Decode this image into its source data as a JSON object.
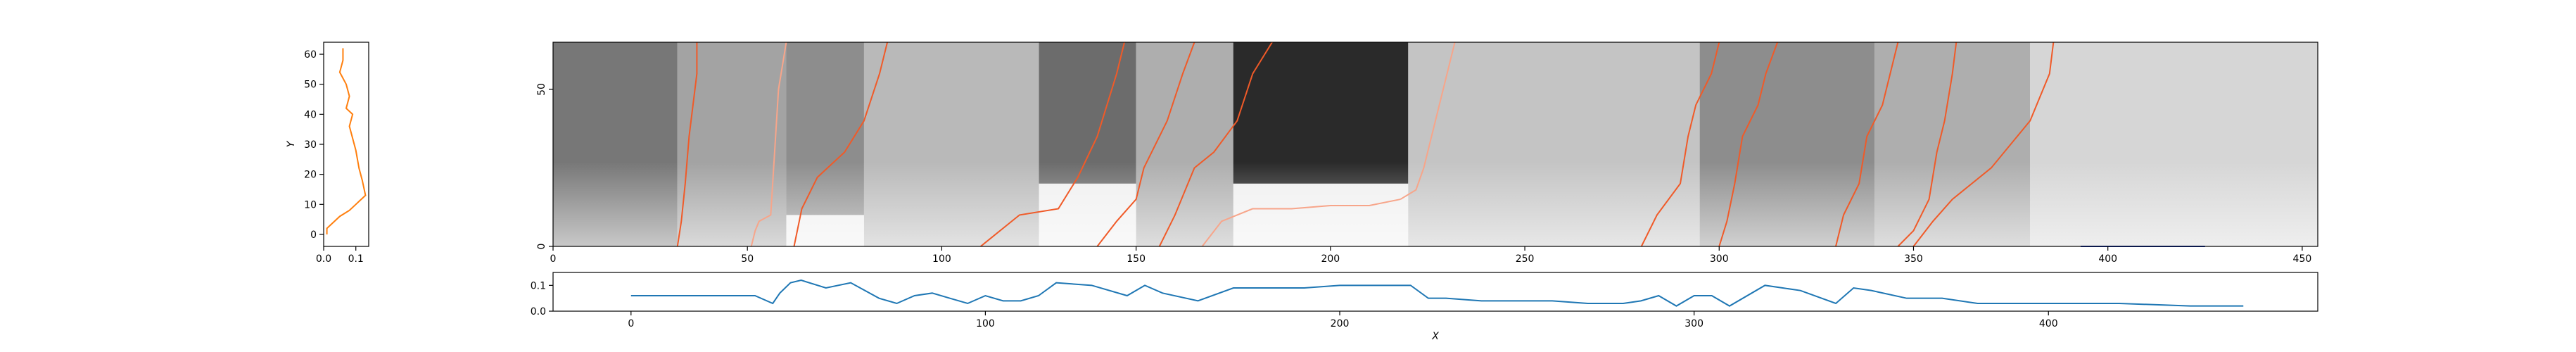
{
  "chart_data": [
    {
      "panel": "left-profile",
      "type": "line",
      "xlabel": "",
      "ylabel": "Y",
      "xlim": [
        0.0,
        0.14
      ],
      "ylim": [
        -4,
        64
      ],
      "x_ticks": [
        "0.0",
        "0.1"
      ],
      "y_ticks": [
        "0",
        "10",
        "20",
        "30",
        "40",
        "50",
        "60"
      ],
      "color": "#ff7f0e",
      "series": [
        {
          "x": [
            0.06,
            0.06,
            0.05,
            0.07,
            0.08,
            0.07,
            0.09,
            0.08,
            0.1,
            0.11,
            0.12,
            0.13,
            0.1,
            0.08,
            0.05,
            0.03,
            0.02,
            0.01,
            0.01
          ],
          "y": [
            62,
            58,
            54,
            50,
            46,
            42,
            40,
            36,
            28,
            22,
            18,
            13,
            10,
            8,
            6,
            4,
            3,
            2,
            0
          ]
        }
      ]
    },
    {
      "panel": "heatmap",
      "type": "heatmap",
      "xlim": [
        0,
        454
      ],
      "ylim": [
        0,
        65
      ],
      "x_ticks": [
        "0",
        "50",
        "100",
        "150",
        "200",
        "250",
        "300",
        "350",
        "400",
        "450"
      ],
      "y_ticks": [
        "0",
        "50"
      ],
      "colormap": "grayscale",
      "path_color": "#f05a28",
      "path_color_light": "#f7a58a",
      "blocks": [
        {
          "x0": 0,
          "x1": 32,
          "y0": 0,
          "y1": 65,
          "shade": 0.55
        },
        {
          "x0": 32,
          "x1": 60,
          "y0": 0,
          "y1": 65,
          "shade": 0.35
        },
        {
          "x0": 60,
          "x1": 80,
          "y0": 10,
          "y1": 65,
          "shade": 0.45
        },
        {
          "x0": 80,
          "x1": 125,
          "y0": 0,
          "y1": 65,
          "shade": 0.25
        },
        {
          "x0": 125,
          "x1": 150,
          "y0": 20,
          "y1": 65,
          "shade": 0.6
        },
        {
          "x0": 150,
          "x1": 175,
          "y0": 0,
          "y1": 65,
          "shade": 0.3
        },
        {
          "x0": 175,
          "x1": 220,
          "y0": 20,
          "y1": 65,
          "shade": 0.9
        },
        {
          "x0": 220,
          "x1": 295,
          "y0": 0,
          "y1": 65,
          "shade": 0.2
        },
        {
          "x0": 295,
          "x1": 340,
          "y0": 0,
          "y1": 65,
          "shade": 0.45
        },
        {
          "x0": 340,
          "x1": 380,
          "y0": 0,
          "y1": 65,
          "shade": 0.3
        },
        {
          "x0": 380,
          "x1": 454,
          "y0": 0,
          "y1": 65,
          "shade": 0.12
        }
      ],
      "paths": [
        {
          "tone": "dark",
          "x": [
            32,
            33,
            34,
            35,
            36,
            37,
            37
          ],
          "y": [
            0,
            8,
            20,
            35,
            45,
            55,
            65
          ]
        },
        {
          "tone": "light",
          "x": [
            51,
            52,
            53,
            56,
            57,
            58,
            60
          ],
          "y": [
            0,
            5,
            8,
            10,
            30,
            50,
            65
          ]
        },
        {
          "tone": "dark",
          "x": [
            62,
            64,
            68,
            75,
            80,
            84,
            86
          ],
          "y": [
            0,
            12,
            22,
            30,
            40,
            55,
            65
          ]
        },
        {
          "tone": "dark",
          "x": [
            110,
            120,
            130,
            135,
            140,
            145,
            147
          ],
          "y": [
            0,
            10,
            12,
            22,
            35,
            55,
            65
          ]
        },
        {
          "tone": "dark",
          "x": [
            140,
            145,
            150,
            152,
            158,
            162,
            165
          ],
          "y": [
            0,
            8,
            15,
            25,
            40,
            55,
            65
          ]
        },
        {
          "tone": "dark",
          "x": [
            156,
            160,
            165,
            170,
            176,
            180,
            185
          ],
          "y": [
            0,
            10,
            25,
            30,
            40,
            55,
            65
          ]
        },
        {
          "tone": "light",
          "x": [
            167,
            172,
            180,
            190,
            200,
            210,
            218
          ],
          "y": [
            0,
            8,
            12,
            12,
            13,
            13,
            15
          ]
        },
        {
          "tone": "light",
          "x": [
            218,
            222,
            224,
            226,
            228,
            230,
            232
          ],
          "y": [
            15,
            18,
            25,
            35,
            45,
            55,
            65
          ]
        },
        {
          "tone": "dark",
          "x": [
            280,
            284,
            290,
            292,
            294,
            298,
            300
          ],
          "y": [
            0,
            10,
            20,
            35,
            45,
            55,
            65
          ]
        },
        {
          "tone": "dark",
          "x": [
            300,
            302,
            304,
            306,
            310,
            312,
            315
          ],
          "y": [
            0,
            8,
            20,
            35,
            45,
            55,
            65
          ]
        },
        {
          "tone": "dark",
          "x": [
            330,
            332,
            336,
            338,
            342,
            344,
            346
          ],
          "y": [
            0,
            10,
            20,
            35,
            45,
            55,
            65
          ]
        },
        {
          "tone": "dark",
          "x": [
            346,
            350,
            354,
            356,
            358,
            360,
            361
          ],
          "y": [
            0,
            5,
            15,
            30,
            40,
            55,
            65
          ]
        },
        {
          "tone": "dark",
          "x": [
            350,
            355,
            360,
            370,
            380,
            385,
            386
          ],
          "y": [
            0,
            8,
            15,
            25,
            40,
            55,
            65
          ]
        }
      ],
      "marker_segment": {
        "x": [
          393,
          425
        ],
        "y": 0,
        "color": "#1f3fbf"
      }
    },
    {
      "panel": "bottom-profile",
      "type": "line",
      "xlabel": "X",
      "ylabel": "",
      "xlim": [
        -22,
        476
      ],
      "ylim": [
        0,
        0.15
      ],
      "x_ticks": [
        "0",
        "100",
        "200",
        "300",
        "400"
      ],
      "y_ticks": [
        "0.0",
        "0.1"
      ],
      "color": "#1f77b4",
      "series": [
        {
          "x": [
            0,
            20,
            35,
            40,
            42,
            45,
            48,
            55,
            62,
            70,
            75,
            80,
            85,
            90,
            95,
            100,
            105,
            110,
            115,
            120,
            130,
            140,
            145,
            150,
            160,
            170,
            180,
            190,
            200,
            210,
            220,
            225,
            230,
            240,
            250,
            260,
            270,
            280,
            285,
            290,
            295,
            300,
            305,
            310,
            320,
            325,
            330,
            340,
            345,
            350,
            360,
            370,
            380,
            390,
            400,
            420,
            440,
            455
          ],
          "y": [
            0.06,
            0.06,
            0.06,
            0.03,
            0.07,
            0.11,
            0.12,
            0.09,
            0.11,
            0.05,
            0.03,
            0.06,
            0.07,
            0.05,
            0.03,
            0.06,
            0.04,
            0.04,
            0.06,
            0.11,
            0.1,
            0.06,
            0.1,
            0.07,
            0.04,
            0.09,
            0.09,
            0.09,
            0.1,
            0.1,
            0.1,
            0.05,
            0.05,
            0.04,
            0.04,
            0.04,
            0.03,
            0.03,
            0.04,
            0.06,
            0.02,
            0.06,
            0.06,
            0.02,
            0.1,
            0.09,
            0.08,
            0.03,
            0.09,
            0.08,
            0.05,
            0.05,
            0.03,
            0.03,
            0.03,
            0.03,
            0.02,
            0.02
          ]
        }
      ]
    }
  ]
}
